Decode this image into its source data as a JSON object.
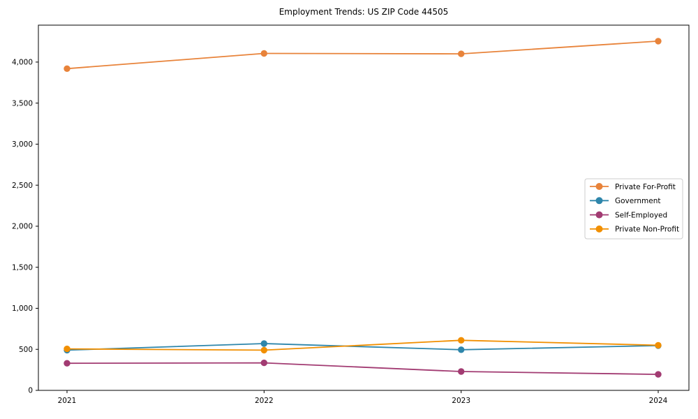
{
  "chart_data": {
    "type": "line",
    "title": "Employment Trends: US ZIP Code 44505",
    "xlabel": "",
    "ylabel": "",
    "x_categories": [
      "2021",
      "2022",
      "2023",
      "2024"
    ],
    "series": [
      {
        "name": "Private For-Profit",
        "color": "#E8833A",
        "values": [
          3920,
          4105,
          4100,
          4255
        ]
      },
      {
        "name": "Government",
        "color": "#2E86AB",
        "values": [
          490,
          570,
          495,
          545
        ]
      },
      {
        "name": "Self-Employed",
        "color": "#A23B72",
        "values": [
          330,
          335,
          230,
          195
        ]
      },
      {
        "name": "Private Non-Profit",
        "color": "#F18F01",
        "values": [
          505,
          490,
          610,
          550
        ]
      }
    ],
    "ylim": [
      0,
      4450
    ],
    "yticks": [
      {
        "value": 0,
        "label": "0"
      },
      {
        "value": 500,
        "label": "500"
      },
      {
        "value": 1000,
        "label": "1,000"
      },
      {
        "value": 1500,
        "label": "1,500"
      },
      {
        "value": 2000,
        "label": "2,000"
      },
      {
        "value": 2500,
        "label": "2,500"
      },
      {
        "value": 3000,
        "label": "3,000"
      },
      {
        "value": 3500,
        "label": "3,500"
      },
      {
        "value": 4000,
        "label": "4,000"
      }
    ],
    "grid": false,
    "marker": "circle",
    "axis_color": "#000000",
    "legend": {
      "position": "center-right",
      "background": "#ffffff",
      "border_color": "#cccccc"
    }
  }
}
